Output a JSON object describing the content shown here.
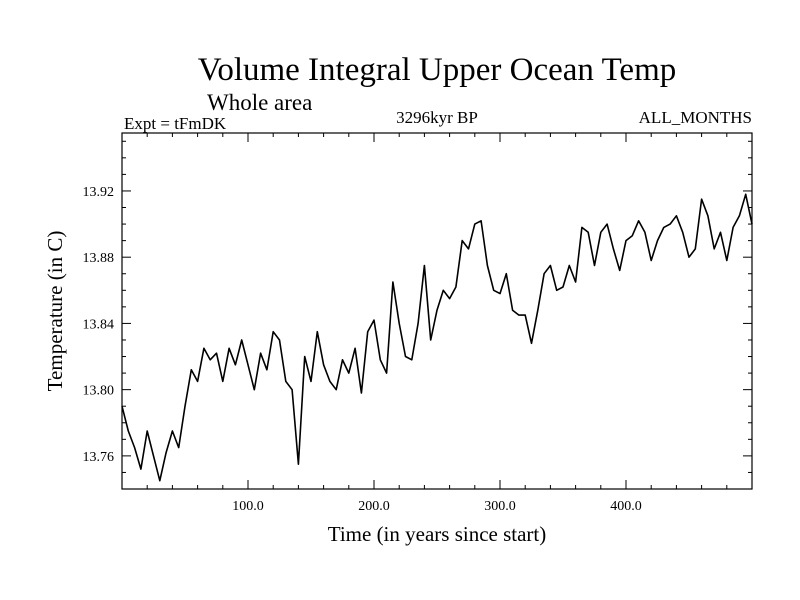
{
  "chart_data": {
    "type": "line",
    "title": "Volume Integral Upper Ocean Temp",
    "subtitle": "Whole area",
    "experiment_label": "Expt = tFmDK",
    "period_label": "3296kyr BP",
    "months_label": "ALL_MONTHS",
    "xlabel": "Time (in years since start)",
    "ylabel": "Temperature (in C)",
    "xlim": [
      0,
      500
    ],
    "ylim": [
      13.74,
      13.955
    ],
    "xticks": [
      100,
      200,
      300,
      400
    ],
    "xtick_labels": [
      "100.0",
      "200.0",
      "300.0",
      "400.0"
    ],
    "yticks": [
      13.76,
      13.8,
      13.84,
      13.88,
      13.92
    ],
    "ytick_labels": [
      "13.76",
      "13.80",
      "13.84",
      "13.88",
      "13.92"
    ],
    "grid": false,
    "series": [
      {
        "name": "Temperature",
        "color": "#000000",
        "x": [
          0,
          5,
          10,
          15,
          20,
          25,
          30,
          35,
          40,
          45,
          50,
          55,
          60,
          65,
          70,
          75,
          80,
          85,
          90,
          95,
          100,
          105,
          110,
          115,
          120,
          125,
          130,
          135,
          140,
          145,
          150,
          155,
          160,
          165,
          170,
          175,
          180,
          185,
          190,
          195,
          200,
          205,
          210,
          215,
          220,
          225,
          230,
          235,
          240,
          245,
          250,
          255,
          260,
          265,
          270,
          275,
          280,
          285,
          290,
          295,
          300,
          305,
          310,
          315,
          320,
          325,
          330,
          335,
          340,
          345,
          350,
          355,
          360,
          365,
          370,
          375,
          380,
          385,
          390,
          395,
          400,
          405,
          410,
          415,
          420,
          425,
          430,
          435,
          440,
          445,
          450,
          455,
          460,
          465,
          470,
          475,
          480,
          485,
          490,
          495,
          500
        ],
        "values": [
          13.79,
          13.775,
          13.765,
          13.752,
          13.775,
          13.76,
          13.745,
          13.762,
          13.775,
          13.765,
          13.79,
          13.812,
          13.805,
          13.825,
          13.818,
          13.822,
          13.805,
          13.825,
          13.815,
          13.83,
          13.815,
          13.8,
          13.822,
          13.812,
          13.835,
          13.83,
          13.805,
          13.8,
          13.755,
          13.82,
          13.805,
          13.835,
          13.815,
          13.805,
          13.8,
          13.818,
          13.81,
          13.825,
          13.798,
          13.835,
          13.842,
          13.818,
          13.81,
          13.865,
          13.84,
          13.82,
          13.818,
          13.84,
          13.875,
          13.83,
          13.848,
          13.86,
          13.855,
          13.862,
          13.89,
          13.885,
          13.9,
          13.902,
          13.875,
          13.86,
          13.858,
          13.87,
          13.848,
          13.845,
          13.845,
          13.828,
          13.848,
          13.87,
          13.875,
          13.86,
          13.862,
          13.875,
          13.865,
          13.898,
          13.895,
          13.875,
          13.895,
          13.9,
          13.885,
          13.872,
          13.89,
          13.893,
          13.902,
          13.895,
          13.878,
          13.89,
          13.898,
          13.9,
          13.905,
          13.895,
          13.88,
          13.885,
          13.915,
          13.905,
          13.885,
          13.895,
          13.878,
          13.898,
          13.905,
          13.918,
          13.9
        ]
      }
    ]
  }
}
